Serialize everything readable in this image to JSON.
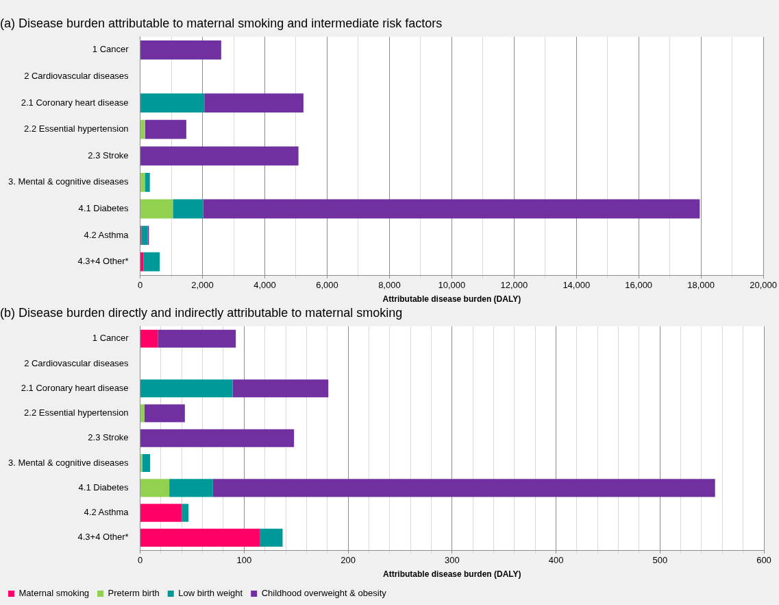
{
  "chart_data": [
    {
      "type": "bar",
      "orientation": "horizontal",
      "stacked": true,
      "title": "(a) Disease burden attributable to maternal smoking and intermediate risk factors",
      "xlabel": "Attributable disease burden (DALY)",
      "categories": [
        "1 Cancer",
        "2 Cardiovascular diseases",
        "2.1 Coronary heart disease",
        "2.2 Essential hypertension",
        "2.3 Stroke",
        "3. Mental & cognitive diseases",
        "4.1 Diabetes",
        "4.2 Asthma",
        "4.3+4 Other*"
      ],
      "series": [
        {
          "color": "#ff0066",
          "values": [
            null,
            null,
            null,
            null,
            null,
            null,
            null,
            40,
            110
          ]
        },
        {
          "color": "#92d050",
          "values": [
            null,
            null,
            null,
            160,
            null,
            150,
            1050,
            null,
            null
          ]
        },
        {
          "color": "#009999",
          "values": [
            null,
            null,
            2060,
            null,
            null,
            160,
            970,
            200,
            520
          ]
        },
        {
          "color": "#7030a0",
          "values": [
            2600,
            null,
            3180,
            1320,
            5080,
            null,
            15940,
            40,
            null
          ]
        }
      ],
      "xlim": [
        0,
        20000
      ],
      "xticks": [
        0,
        {
          "value": 1000,
          "label": null
        },
        {
          "value": 2000,
          "label": "2,000"
        },
        {
          "value": 3000,
          "label": null
        },
        {
          "value": 4000,
          "label": "4,000"
        },
        {
          "value": 5000,
          "label": null
        },
        {
          "value": 6000,
          "label": "6,000"
        },
        {
          "value": 7000,
          "label": null
        },
        {
          "value": 8000,
          "label": "8,000"
        },
        {
          "value": 9000,
          "label": null
        },
        {
          "value": 10000,
          "label": "10,000"
        },
        {
          "value": 11000,
          "label": null
        },
        {
          "value": 12000,
          "label": "12,000"
        },
        {
          "value": 13000,
          "label": null
        },
        {
          "value": 14000,
          "label": "14,000"
        },
        {
          "value": 15000,
          "label": null
        },
        {
          "value": 16000,
          "label": "16,000"
        },
        {
          "value": 17000,
          "label": null
        },
        {
          "value": 18000,
          "label": "18,000"
        },
        {
          "value": 19000,
          "label": null
        },
        {
          "value": 20000,
          "label": "20,000"
        }
      ],
      "grid": "x"
    },
    {
      "type": "bar",
      "orientation": "horizontal",
      "stacked": true,
      "title": "(b) Disease burden directly and indirectly attributable to maternal smoking",
      "xlabel": "Attributable disease burden (DALY)",
      "categories": [
        "1 Cancer",
        "2 Cardiovascular diseases",
        "2.1 Coronary heart disease",
        "2.2 Essential hypertension",
        "2.3 Stroke",
        "3. Mental & cognitive diseases",
        "4.1 Diabetes",
        "4.2 Asthma",
        "4.3+4 Other*"
      ],
      "series": [
        {
          "name": "Maternal smoking",
          "color": "#ff0066",
          "values": [
            17,
            null,
            null,
            null,
            null,
            null,
            null,
            40,
            115
          ]
        },
        {
          "name": "Preterm birth",
          "color": "#92d050",
          "values": [
            null,
            null,
            null,
            4,
            null,
            2,
            28,
            null,
            null
          ]
        },
        {
          "name": "Low birth weight",
          "color": "#009999",
          "values": [
            null,
            null,
            89,
            null,
            null,
            7.5,
            42,
            6.5,
            22
          ]
        },
        {
          "name": "Childhood overweight & obesity",
          "color": "#7030a0",
          "values": [
            75,
            null,
            92,
            39,
            148,
            null,
            483,
            null,
            null
          ]
        }
      ],
      "xlim": [
        0,
        600
      ],
      "xticks": [
        0,
        {
          "value": 20,
          "label": null
        },
        {
          "value": 40,
          "label": null
        },
        {
          "value": 60,
          "label": null
        },
        {
          "value": 80,
          "label": null
        },
        100,
        {
          "value": 120,
          "label": null
        },
        {
          "value": 140,
          "label": null
        },
        {
          "value": 160,
          "label": null
        },
        {
          "value": 180,
          "label": null
        },
        200,
        {
          "value": 220,
          "label": null
        },
        {
          "value": 240,
          "label": null
        },
        {
          "value": 260,
          "label": null
        },
        {
          "value": 280,
          "label": null
        },
        300,
        {
          "value": 320,
          "label": null
        },
        {
          "value": 340,
          "label": null
        },
        {
          "value": 360,
          "label": null
        },
        {
          "value": 380,
          "label": null
        },
        400,
        {
          "value": 420,
          "label": null
        },
        {
          "value": 440,
          "label": null
        },
        {
          "value": 460,
          "label": null
        },
        {
          "value": 480,
          "label": null
        },
        500,
        {
          "value": 520,
          "label": null
        },
        {
          "value": 540,
          "label": null
        },
        {
          "value": 560,
          "label": null
        },
        {
          "value": 580,
          "label": null
        },
        600
      ],
      "grid": "x",
      "legend": "bottom left"
    }
  ]
}
